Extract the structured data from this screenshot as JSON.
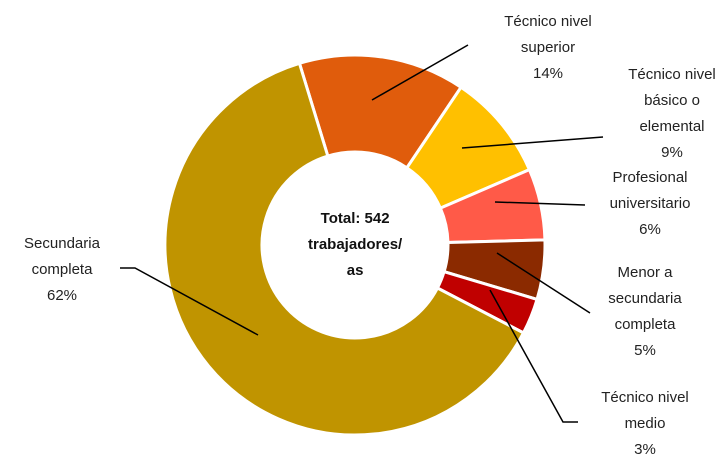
{
  "chart_data": {
    "type": "donut",
    "center_label": "Total: 542 trabajadores/ as",
    "categories": [
      "Técnico nivel superior",
      "Técnico nivel básico o elemental",
      "Profesional universitario",
      "Menor a secundaria completa",
      "Técnico nivel medio",
      "Secundaria completa"
    ],
    "values": [
      14,
      9,
      6,
      5,
      3,
      62
    ],
    "value_labels": [
      "14%",
      "9%",
      "6%",
      "5%",
      "3%",
      "62%"
    ],
    "colors": [
      "#e05c0c",
      "#ffc000",
      "#ff5a48",
      "#8b2a00",
      "#c00000",
      "#c09400"
    ]
  }
}
